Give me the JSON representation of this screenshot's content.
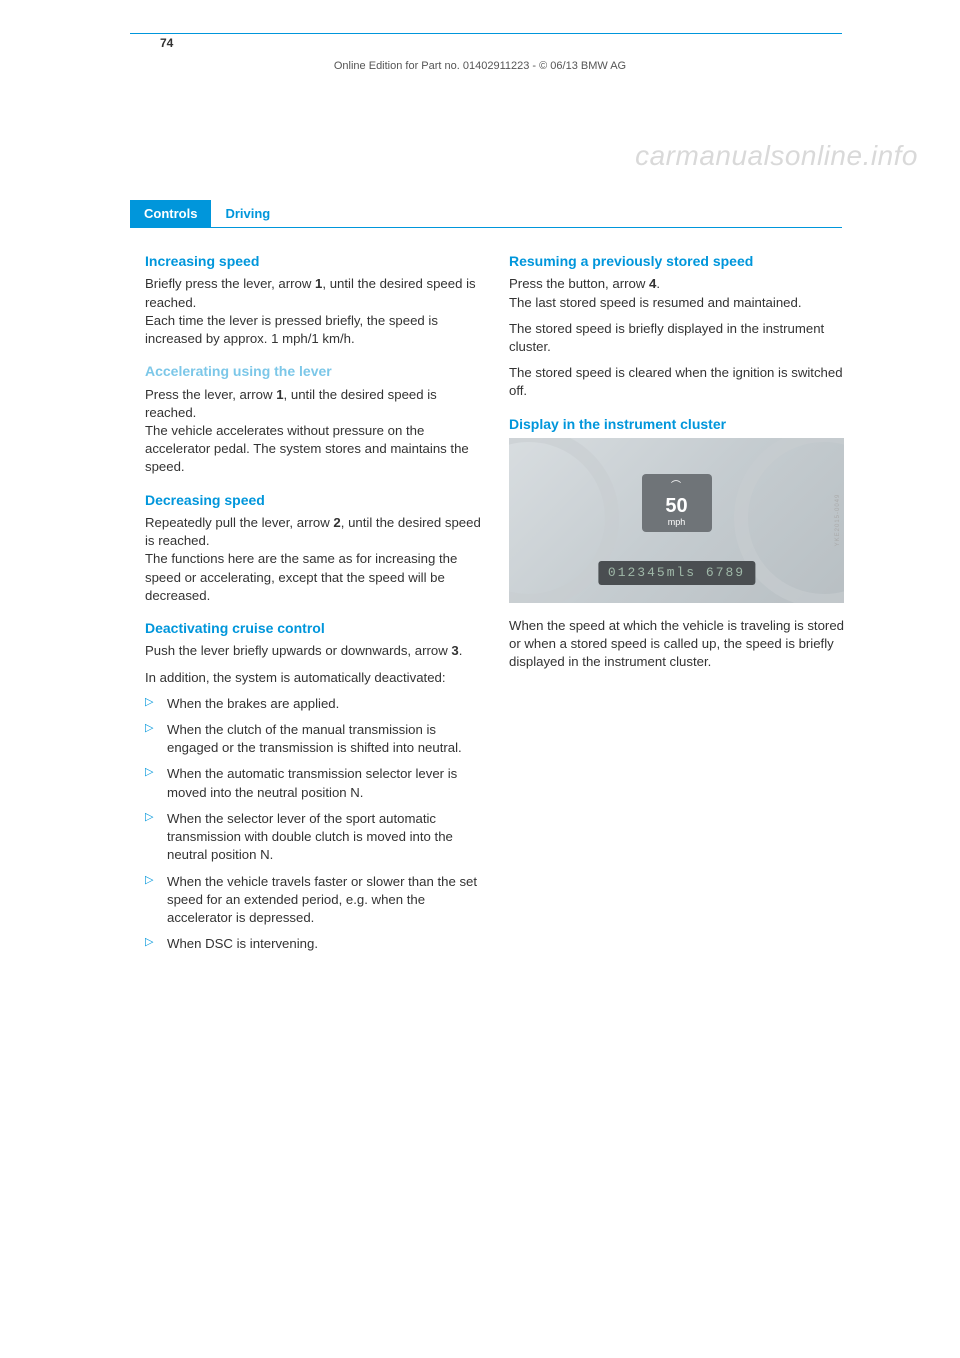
{
  "header": {
    "tab1": "Controls",
    "tab2": "Driving"
  },
  "left": {
    "h1": "Increasing speed",
    "p1a": "Briefly press the lever, arrow ",
    "p1bold": "1",
    "p1b": ", until the desired speed is reached.",
    "p1c": "Each time the lever is pressed briefly, the speed is increased by approx. 1 mph/1 km/h.",
    "h2": "Accelerating using the lever",
    "p2a": "Press the lever, arrow ",
    "p2bold": "1",
    "p2b": ", until the desired speed is reached.",
    "p2c": "The vehicle accelerates without pressure on the accelerator pedal. The system stores and maintains the speed.",
    "h3": "Decreasing speed",
    "p3a": "Repeatedly pull the lever, arrow ",
    "p3bold": "2",
    "p3b": ", until the desired speed is reached.",
    "p3c": "The functions here are the same as for increas­ing the speed or accelerating, except that the speed will be decreased.",
    "h4": "Deactivating cruise control",
    "p4a": "Push the lever briefly upwards or downwards, arrow ",
    "p4bold": "3",
    "p4b": ".",
    "p4c": "In addition, the system is automatically deactivated:",
    "bullets": [
      "When the brakes are applied.",
      "When the clutch of the manual transmission is engaged or the transmission is shifted into neutral.",
      "When the automatic transmission selector lever is moved into the neutral position N.",
      "When the selector lever of the sport auto­matic transmission with double clutch is moved into the neutral position N.",
      "When the vehicle travels faster or slower than the set speed for an extended period, e.g. when the accelerator is depressed.",
      "When DSC is intervening."
    ]
  },
  "right": {
    "h1": "Resuming a previously stored speed",
    "p1a": "Press the button, arrow ",
    "p1bold": "4",
    "p1b": ".",
    "p1c": "The last stored speed is resumed and maintained.",
    "p1d": "The stored speed is briefly displayed in the instrument cluster.",
    "p1e": "The stored speed is cleared when the ignition is switched off.",
    "h2": "Display in the instrument cluster",
    "cluster": {
      "speed_value": "50",
      "speed_unit": "mph",
      "odometer": "012345mls  6789",
      "side_code": "YKE2015-0049"
    },
    "p2a": "When the speed at which the vehicle is traveling is stored or when a stored speed is called up, the speed is briefly displayed in the instrument cluster."
  },
  "footer": {
    "page_number": "74",
    "line": "Online Edition for Part no. 01402911223 - © 06/13 BMW AG",
    "watermark": "carmanualsonline.info"
  }
}
